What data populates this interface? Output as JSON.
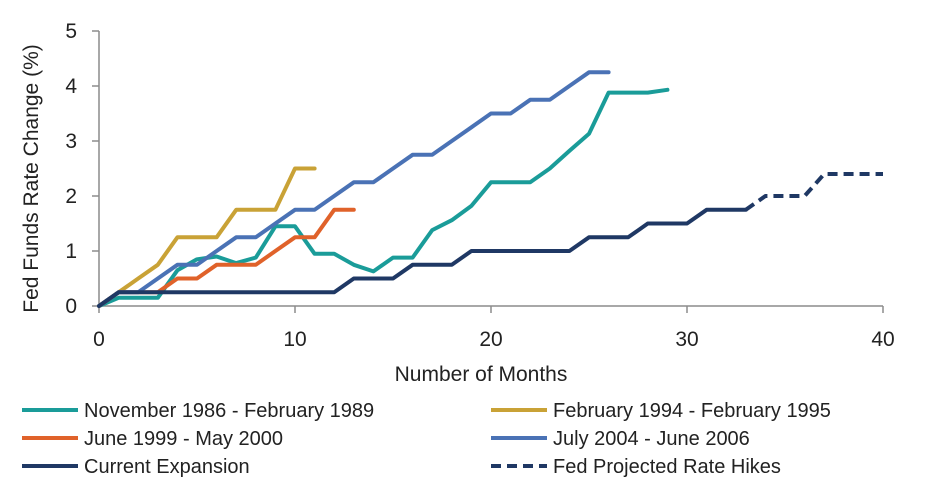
{
  "chart_data": {
    "type": "line",
    "title": "",
    "xlabel": "Number of Months",
    "ylabel": "Fed Funds Rate Change (%)",
    "xlim": [
      0,
      40
    ],
    "ylim": [
      0,
      5
    ],
    "x_ticks": [
      0,
      10,
      20,
      30,
      40
    ],
    "y_ticks": [
      0,
      1,
      2,
      3,
      4,
      5
    ],
    "grid": false,
    "legend_position": "bottom",
    "series": [
      {
        "name": "November 1986 - February 1989",
        "color": "#1a9c99",
        "dash": "solid",
        "x": [
          0,
          1,
          2,
          3,
          4,
          5,
          6,
          7,
          8,
          9,
          10,
          11,
          12,
          13,
          14,
          15,
          16,
          17,
          18,
          19,
          20,
          21,
          22,
          23,
          24,
          25,
          26,
          27,
          28,
          29
        ],
        "y": [
          0,
          0.15,
          0.15,
          0.15,
          0.65,
          0.85,
          0.9,
          0.78,
          0.88,
          1.45,
          1.45,
          0.95,
          0.95,
          0.75,
          0.63,
          0.88,
          0.88,
          1.38,
          1.56,
          1.82,
          2.25,
          2.25,
          2.25,
          2.5,
          2.82,
          3.13,
          3.88,
          3.88,
          3.88,
          3.93
        ]
      },
      {
        "name": "February 1994 - February 1995",
        "color": "#c9a236",
        "dash": "solid",
        "x": [
          0,
          1,
          2,
          3,
          4,
          5,
          6,
          7,
          8,
          9,
          10,
          11
        ],
        "y": [
          0,
          0.25,
          0.5,
          0.75,
          1.25,
          1.25,
          1.25,
          1.75,
          1.75,
          1.75,
          2.5,
          2.5
        ]
      },
      {
        "name": "June 1999 - May 2000",
        "color": "#e0622a",
        "dash": "solid",
        "x": [
          0,
          1,
          2,
          3,
          4,
          5,
          6,
          7,
          8,
          9,
          10,
          11,
          12,
          13
        ],
        "y": [
          0,
          0.25,
          0.25,
          0.25,
          0.5,
          0.5,
          0.75,
          0.75,
          0.75,
          1.0,
          1.25,
          1.25,
          1.75,
          1.75
        ]
      },
      {
        "name": "July 2004 - June 2006",
        "color": "#4a72b5",
        "dash": "solid",
        "x": [
          0,
          1,
          2,
          3,
          4,
          5,
          6,
          7,
          8,
          9,
          10,
          11,
          12,
          13,
          14,
          15,
          16,
          17,
          18,
          19,
          20,
          21,
          22,
          23,
          24,
          25,
          26
        ],
        "y": [
          0,
          0.25,
          0.25,
          0.5,
          0.75,
          0.75,
          1.0,
          1.25,
          1.25,
          1.5,
          1.75,
          1.75,
          2.0,
          2.25,
          2.25,
          2.5,
          2.75,
          2.75,
          3.0,
          3.25,
          3.5,
          3.5,
          3.75,
          3.75,
          4.0,
          4.25,
          4.25
        ]
      },
      {
        "name": "Current Expansion",
        "color": "#1f3864",
        "dash": "solid",
        "x": [
          0,
          1,
          2,
          3,
          4,
          5,
          6,
          7,
          8,
          9,
          10,
          11,
          12,
          13,
          14,
          15,
          16,
          17,
          18,
          19,
          20,
          21,
          22,
          23,
          24,
          25,
          26,
          27,
          28,
          29,
          30,
          31,
          32,
          33
        ],
        "y": [
          0,
          0.25,
          0.25,
          0.25,
          0.25,
          0.25,
          0.25,
          0.25,
          0.25,
          0.25,
          0.25,
          0.25,
          0.25,
          0.5,
          0.5,
          0.5,
          0.75,
          0.75,
          0.75,
          1.0,
          1.0,
          1.0,
          1.0,
          1.0,
          1.0,
          1.25,
          1.25,
          1.25,
          1.5,
          1.5,
          1.5,
          1.75,
          1.75,
          1.75
        ]
      },
      {
        "name": "Fed Projected Rate Hikes",
        "color": "#1f3864",
        "dash": "dashed",
        "x": [
          33,
          34,
          35,
          36,
          37,
          38,
          39,
          40
        ],
        "y": [
          1.75,
          2.0,
          2.0,
          2.0,
          2.4,
          2.4,
          2.4,
          2.4
        ]
      }
    ]
  }
}
